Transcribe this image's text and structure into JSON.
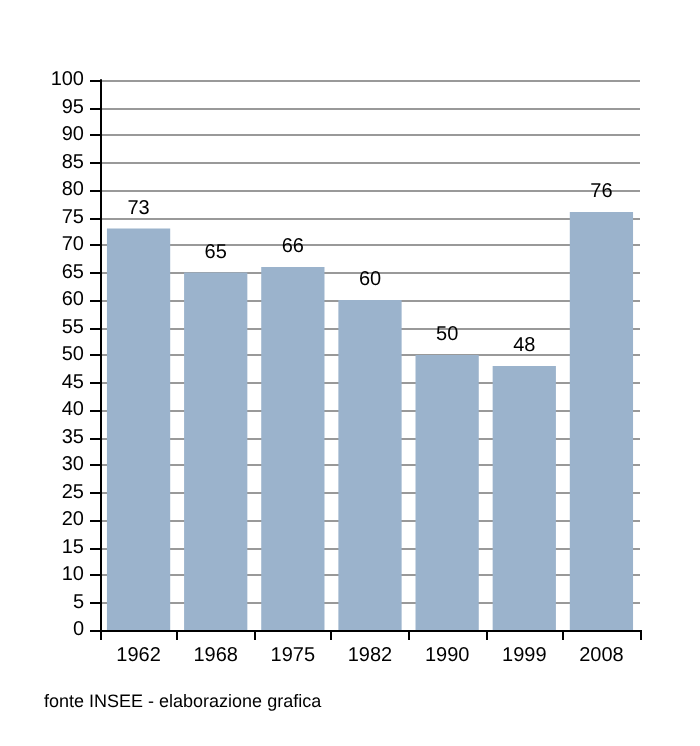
{
  "chart_data": {
    "type": "bar",
    "categories": [
      "1962",
      "1968",
      "1975",
      "1982",
      "1990",
      "1999",
      "2008"
    ],
    "values": [
      73,
      65,
      66,
      60,
      50,
      48,
      76
    ],
    "color": "#9bb3cc",
    "data_labels": true,
    "ylim": [
      0,
      100
    ],
    "yticks": [
      0,
      5,
      10,
      15,
      20,
      25,
      30,
      35,
      40,
      45,
      50,
      55,
      60,
      65,
      70,
      75,
      80,
      85,
      90,
      95,
      100
    ],
    "grid": "y",
    "annotations": [
      "fonte INSEE - elaborazione grafica"
    ]
  }
}
